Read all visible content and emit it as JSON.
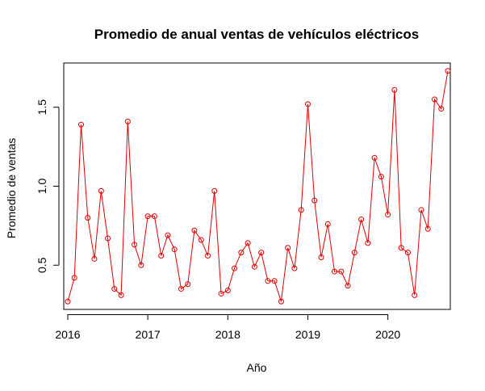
{
  "chart_data": {
    "type": "line",
    "title": "Promedio de anual ventas de vehículos eléctricos",
    "xlabel": "Año",
    "ylabel": "Promedio de ventas",
    "xlim": [
      2015.95,
      2020.78
    ],
    "ylim": [
      0.22,
      1.78
    ],
    "x_ticks": [
      2016,
      2017,
      2018,
      2019,
      2020
    ],
    "x_tick_labels": [
      "2016",
      "2017",
      "2018",
      "2019",
      "2020"
    ],
    "y_ticks": [
      0.5,
      1.0,
      1.5
    ],
    "y_tick_labels": [
      "0.5",
      "1.0",
      "1.5"
    ],
    "grid": false,
    "series": [
      {
        "color": "#e00000",
        "marker": "open-circle",
        "x": [
          2016.0,
          2016.083,
          2016.167,
          2016.25,
          2016.333,
          2016.417,
          2016.5,
          2016.583,
          2016.667,
          2016.75,
          2016.833,
          2016.917,
          2017.0,
          2017.083,
          2017.167,
          2017.25,
          2017.333,
          2017.417,
          2017.5,
          2017.583,
          2017.667,
          2017.75,
          2017.833,
          2017.917,
          2018.0,
          2018.083,
          2018.167,
          2018.25,
          2018.333,
          2018.417,
          2018.5,
          2018.583,
          2018.667,
          2018.75,
          2018.833,
          2018.917,
          2019.0,
          2019.083,
          2019.167,
          2019.25,
          2019.333,
          2019.417,
          2019.5,
          2019.583,
          2019.667,
          2019.75,
          2019.833,
          2019.917,
          2020.0,
          2020.083,
          2020.167,
          2020.25,
          2020.333,
          2020.417,
          2020.5,
          2020.583,
          2020.667,
          2020.75
        ],
        "values": [
          0.27,
          0.42,
          1.39,
          0.8,
          0.54,
          0.97,
          0.67,
          0.35,
          0.31,
          1.41,
          0.63,
          0.5,
          0.81,
          0.81,
          0.56,
          0.69,
          0.6,
          0.35,
          0.38,
          0.72,
          0.66,
          0.56,
          0.97,
          0.32,
          0.34,
          0.48,
          0.58,
          0.64,
          0.49,
          0.58,
          0.4,
          0.4,
          0.27,
          0.61,
          0.48,
          0.85,
          1.52,
          0.91,
          0.55,
          0.76,
          0.46,
          0.46,
          0.37,
          0.58,
          0.79,
          0.64,
          1.18,
          1.06,
          0.82,
          1.61,
          0.61,
          0.58,
          0.31,
          0.85,
          0.73,
          1.55,
          1.49,
          1.73
        ]
      }
    ]
  }
}
